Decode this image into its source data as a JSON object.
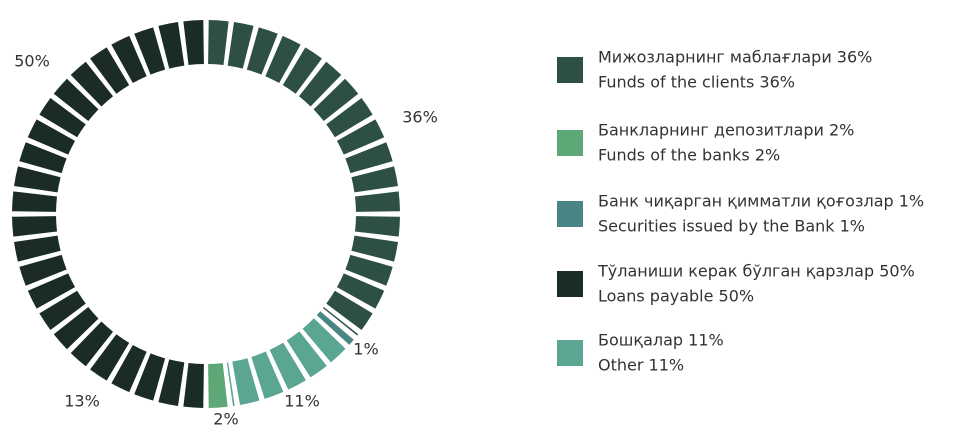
{
  "chart_data": {
    "type": "donut",
    "categories": [
      "Мижозларнинг маблағлари  36%",
      "Банкларнинг депозитлари 2%",
      "Банк чиқарган қимматли қоғозлар  1%",
      "Тўланиши керак бўлган қарзлар  50%",
      "Бошқалар 11%"
    ],
    "categories_en": [
      "Funds of the clients 36%",
      "Funds of the banks 2%",
      "Securities issued by the Bank 1%",
      "Loans payable 50%",
      "Other 11%"
    ],
    "values": [
      36,
      2,
      1,
      50,
      11
    ],
    "value_labels": [
      "36%",
      "2%",
      "1%",
      "50%",
      "11%"
    ],
    "colors": [
      "#2d4f45",
      "#5ea878",
      "#4a8585",
      "#1a2b28",
      "#5aa693"
    ],
    "annotations": [
      "13%"
    ]
  }
}
